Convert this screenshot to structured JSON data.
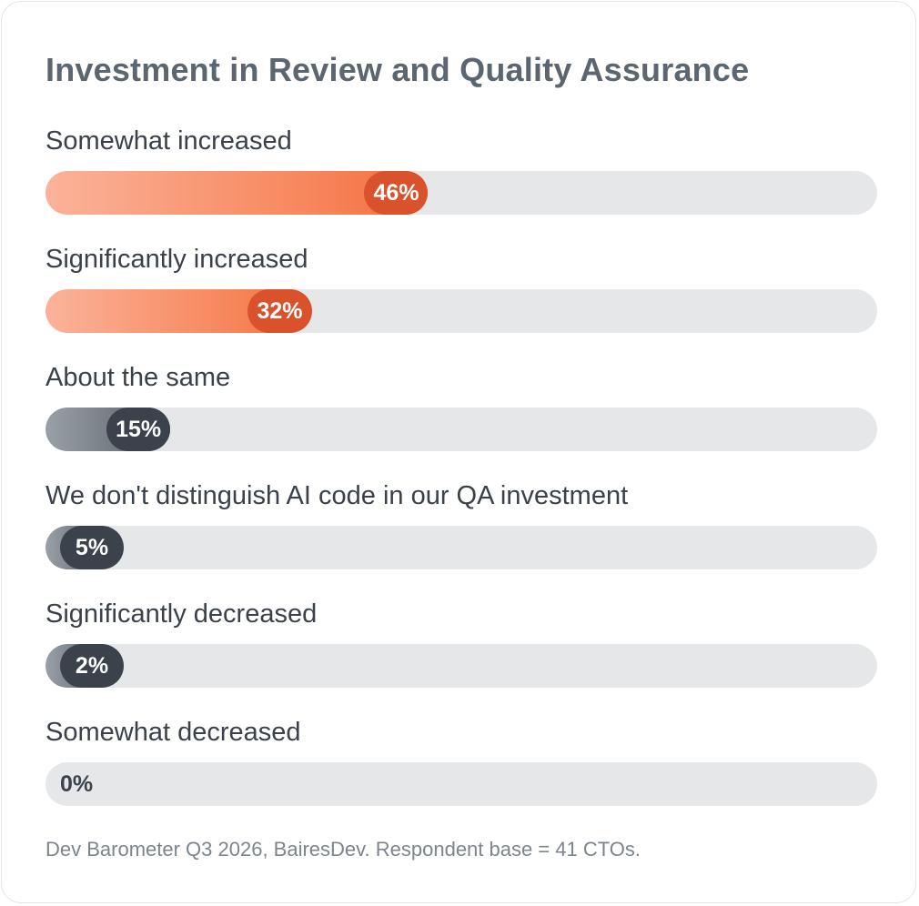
{
  "chart_data": {
    "type": "bar",
    "orientation": "horizontal",
    "title": "Investment in Review and Quality Assurance",
    "categories": [
      "Somewhat increased",
      "Significantly increased",
      "About the same",
      "We don't distinguish AI code in our QA investment",
      "Significantly decreased",
      "Somewhat decreased"
    ],
    "values": [
      46,
      32,
      15,
      5,
      2,
      0
    ],
    "value_labels": [
      "46%",
      "32%",
      "15%",
      "5%",
      "2%",
      "0%"
    ],
    "unit": "%",
    "xlim": [
      0,
      100
    ],
    "tones": [
      "warm",
      "warm",
      "cool",
      "cool",
      "cool",
      "cool"
    ],
    "grid": false,
    "legend": "none"
  },
  "footnote": "Dev Barometer Q3 2026, BairesDev. Respondent base = 41 CTOs.",
  "colors": {
    "warm_fill_start": "#fbb39a",
    "warm_fill_end": "#f56d3c",
    "warm_pill": "#d9522b",
    "cool_fill_start": "#9aa0a7",
    "cool_fill_end": "#4e555d",
    "cool_pill": "#3b424b",
    "track": "#e6e7e9",
    "title": "#5c6670"
  }
}
